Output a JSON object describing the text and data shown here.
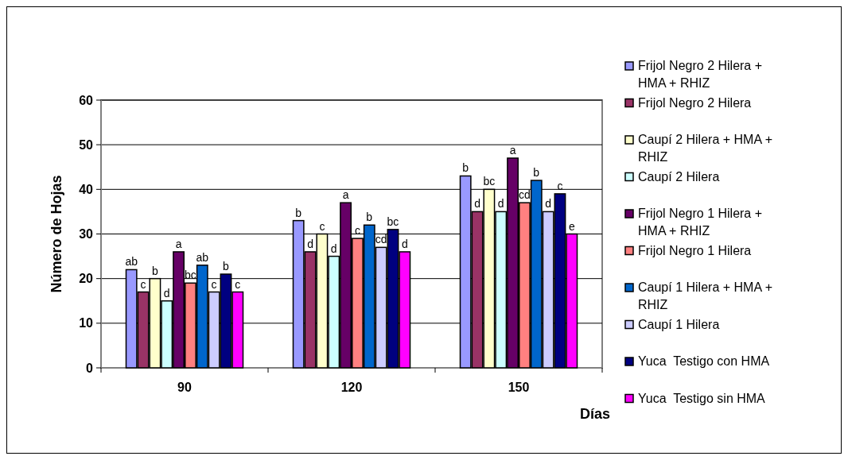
{
  "chart_data": {
    "type": "bar",
    "xlabel": "Días",
    "ylabel": "Número de Hojas",
    "categories": [
      "90",
      "120",
      "150"
    ],
    "series": [
      {
        "name": "Frijol Negro 2 Hilera + HMA + RHIZ",
        "color": "#9999ff",
        "values": [
          22,
          33,
          43
        ],
        "value_labels": [
          "ab",
          "b",
          "b"
        ]
      },
      {
        "name": "Frijol Negro 2 Hilera",
        "color": "#993366",
        "values": [
          17,
          26,
          35
        ],
        "value_labels": [
          "c",
          "d",
          "d"
        ]
      },
      {
        "name": "Caupí 2 Hilera + HMA + RHIZ",
        "color": "#ffffcc",
        "values": [
          20,
          30,
          40
        ],
        "value_labels": [
          "b",
          "c",
          "bc"
        ]
      },
      {
        "name": "Caupí 2 Hilera",
        "color": "#ccffff",
        "values": [
          15,
          25,
          35
        ],
        "value_labels": [
          "d",
          "d",
          "d"
        ]
      },
      {
        "name": "Frijol Negro 1 Hilera + HMA + RHIZ",
        "color": "#660066",
        "values": [
          26,
          37,
          47
        ],
        "value_labels": [
          "a",
          "a",
          "a"
        ]
      },
      {
        "name": "Frijol Negro 1 Hilera",
        "color": "#ff8080",
        "values": [
          19,
          29,
          37
        ],
        "value_labels": [
          "bc",
          "c",
          "cd"
        ]
      },
      {
        "name": "Caupí 1 Hilera + HMA + RHIZ",
        "color": "#0066cc",
        "values": [
          23,
          32,
          42
        ],
        "value_labels": [
          "ab",
          "b",
          "b"
        ]
      },
      {
        "name": "Caupí 1 Hilera",
        "color": "#ccccff",
        "values": [
          17,
          27,
          35
        ],
        "value_labels": [
          "c",
          "cd",
          "d"
        ]
      },
      {
        "name": "Yuca  Testigo con HMA",
        "color": "#000080",
        "values": [
          21,
          31,
          39
        ],
        "value_labels": [
          "b",
          "bc",
          "c"
        ]
      },
      {
        "name": "Yuca  Testigo sin HMA",
        "color": "#ff00ff",
        "values": [
          17,
          26,
          30
        ],
        "value_labels": [
          "c",
          "d",
          "e"
        ]
      }
    ],
    "ylim": [
      0,
      60
    ],
    "yticks": [
      0,
      10,
      20,
      30,
      40,
      50,
      60
    ],
    "grid": "y",
    "legend": "right"
  }
}
